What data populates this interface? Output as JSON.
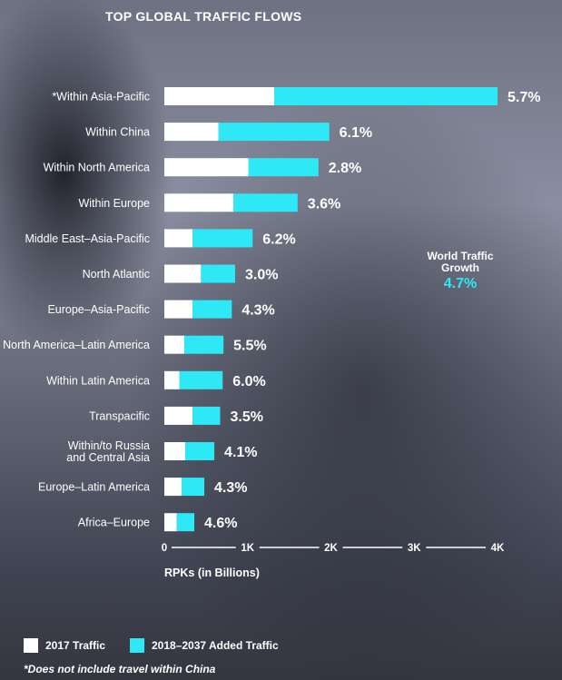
{
  "title": "TOP GLOBAL TRAFFIC FLOWS",
  "world_growth": {
    "label_line1": "World Traffic",
    "label_line2": "Growth",
    "value": "4.7%"
  },
  "legend": [
    {
      "label": "2017 Traffic",
      "color": "#ffffff"
    },
    {
      "label": "2018–2037 Added Traffic",
      "color": "#2ee8f5"
    }
  ],
  "footnote": "*Does not include travel within China",
  "chart_data": {
    "type": "bar",
    "orientation": "horizontal",
    "stacked": true,
    "title": "TOP GLOBAL TRAFFIC FLOWS",
    "xlabel": "RPKs (in Billions)",
    "xlim": [
      0,
      4000
    ],
    "xticks": [
      0,
      1000,
      2000,
      3000,
      4000
    ],
    "xtick_labels": [
      "0",
      "1K",
      "2K",
      "3K",
      "4K"
    ],
    "categories": [
      [
        "*Within Asia-Pacific"
      ],
      [
        "Within China"
      ],
      [
        "Within North America"
      ],
      [
        "Within Europe"
      ],
      [
        "Middle East–Asia-Pacific"
      ],
      [
        "North Atlantic"
      ],
      [
        "Europe–Asia-Pacific"
      ],
      [
        "North America–Latin America"
      ],
      [
        "Within Latin America"
      ],
      [
        "Transpacific"
      ],
      [
        "Within/to Russia",
        "and Central Asia"
      ],
      [
        "Europe–Latin America"
      ],
      [
        "Africa–Europe"
      ]
    ],
    "series": [
      {
        "name": "2017 Traffic",
        "color": "#ffffff",
        "values": [
          1320,
          650,
          1010,
          830,
          340,
          440,
          340,
          240,
          180,
          340,
          250,
          210,
          150
        ]
      },
      {
        "name": "2018–2037 Added Traffic",
        "color": "#2ee8f5",
        "values": [
          2680,
          1330,
          840,
          770,
          720,
          410,
          470,
          470,
          520,
          330,
          350,
          270,
          210
        ]
      }
    ],
    "growth_labels": [
      "5.7%",
      "6.1%",
      "2.8%",
      "3.6%",
      "6.2%",
      "3.0%",
      "4.3%",
      "5.5%",
      "6.0%",
      "3.5%",
      "4.1%",
      "4.3%",
      "4.6%"
    ],
    "grid": false,
    "legend_position": "bottom-left"
  }
}
